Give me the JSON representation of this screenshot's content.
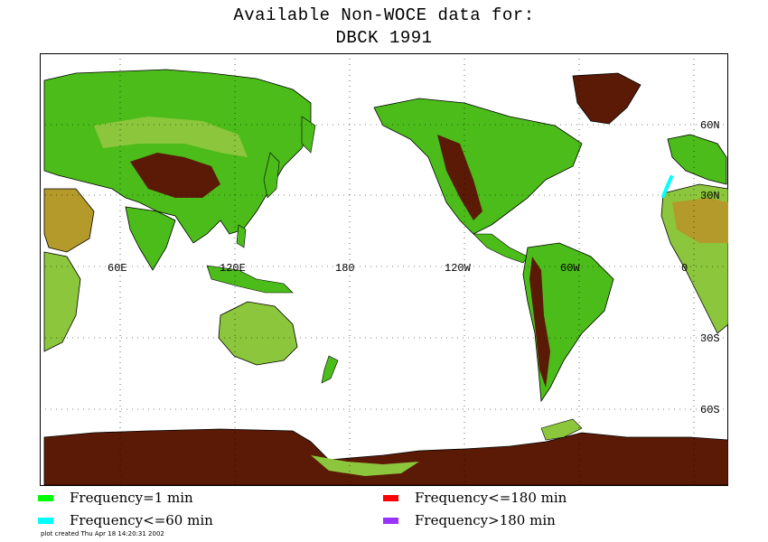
{
  "title": {
    "line1": "Available Non-WOCE data for:",
    "line2": "DBCK 1991"
  },
  "map": {
    "projection": "equirectangular",
    "longitude_labels": [
      "60E",
      "120E",
      "180",
      "120W",
      "60W",
      "0"
    ],
    "latitude_labels": [
      "60N",
      "30N",
      "30S",
      "60S"
    ],
    "gridlines": "dotted",
    "colors": {
      "ocean": "#ffffff",
      "lowland": "#4cbc1a",
      "upland": "#8cc63c",
      "plateau": "#b49a2a",
      "mountain": "#5a1a06",
      "coastline": "#000000",
      "track": "#00ffff"
    },
    "track": {
      "frequency": "Frequency<=60 min",
      "location": "Northwest Africa / Canary Islands coast"
    }
  },
  "legend": [
    {
      "label": "Frequency=1 min",
      "color": "#00ff00"
    },
    {
      "label": "Frequency<=60 min",
      "color": "#00ffff"
    },
    {
      "label": "Frequency<=180 min",
      "color": "#ff0000"
    },
    {
      "label": "Frequency>180 min",
      "color": "#9933ff"
    }
  ],
  "footer": "plot created Thu Apr 18 14:20:31 2002"
}
